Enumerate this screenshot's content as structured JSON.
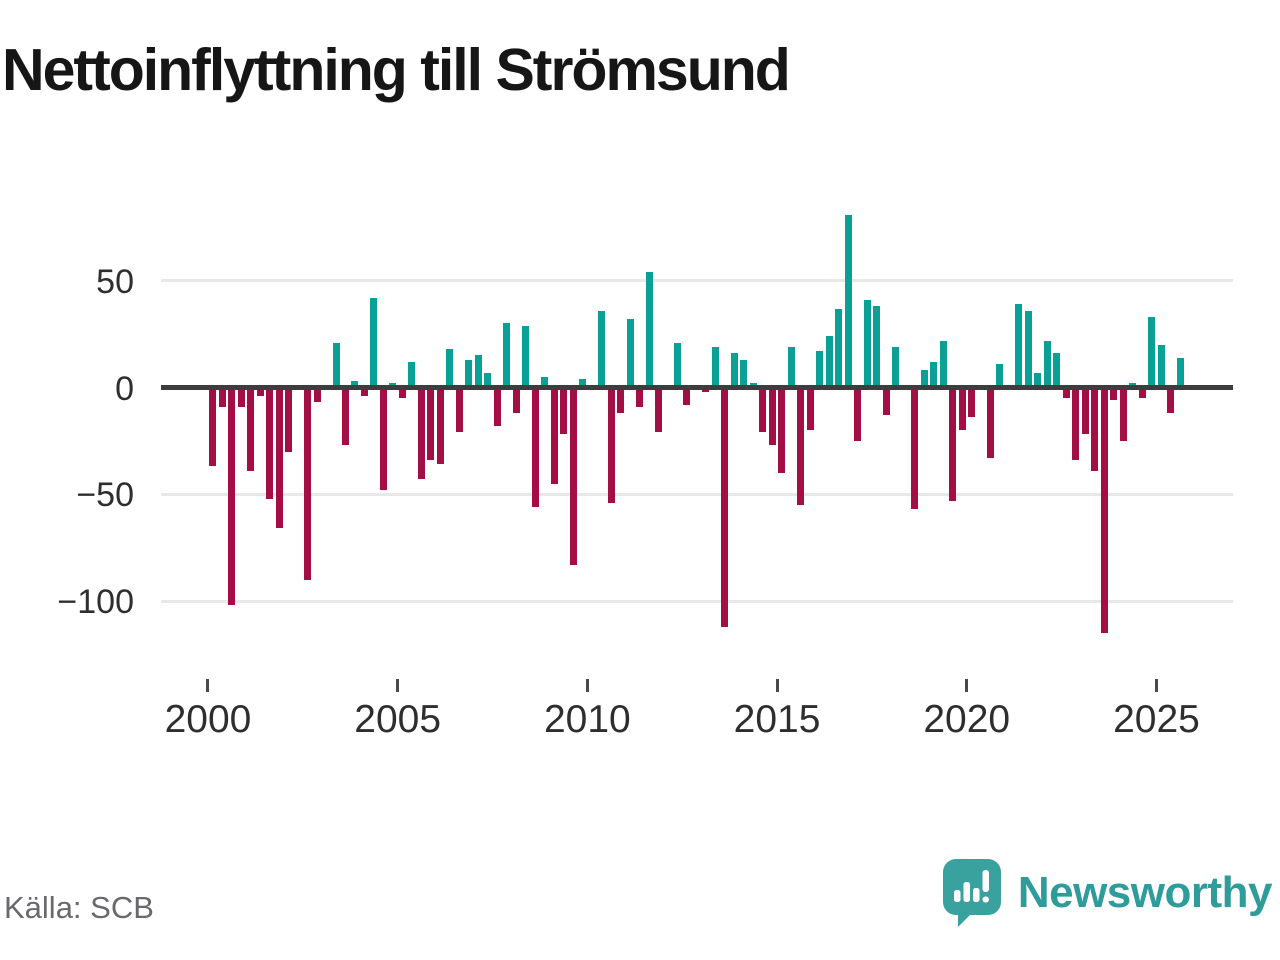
{
  "title": "Nettoinflyttning till Strömsund",
  "source": "Källa: SCB",
  "brand": {
    "name": "Newsworthy"
  },
  "colors": {
    "positive": "#09a096",
    "negative": "#a30f44",
    "grid": "#e8e8e8",
    "zero_line": "#3d3d3d",
    "axis_text": "#2e2e2e",
    "source_text": "#68686d",
    "brand_teal": "#2d9c9b",
    "logo_bubble": "#3aa29e",
    "title_text": "#161616"
  },
  "chart_data": {
    "type": "bar",
    "title": "Nettoinflyttning till Strömsund",
    "frequency": "quarterly",
    "start_year": 2000,
    "start_quarter": 1,
    "end_year": 2025,
    "end_quarter": 3,
    "x_ticks": [
      2000,
      2005,
      2010,
      2015,
      2020,
      2025
    ],
    "y_ticks": [
      50,
      0,
      -50,
      -100
    ],
    "ylim": [
      -120,
      95
    ],
    "grid": true,
    "legend": false,
    "xlabel": "",
    "ylabel": "",
    "values": [
      -37,
      -9,
      -102,
      -9,
      -39,
      -4,
      -52,
      -66,
      -30,
      0,
      -90,
      -7,
      0,
      21,
      -27,
      3,
      -4,
      42,
      -48,
      2,
      -5,
      12,
      -43,
      -34,
      -36,
      18,
      -21,
      13,
      15,
      7,
      -18,
      30,
      -12,
      29,
      -56,
      5,
      -45,
      -22,
      -83,
      4,
      0,
      36,
      -54,
      -12,
      32,
      -9,
      54,
      -21,
      0,
      21,
      -8,
      0,
      -2,
      19,
      -112,
      16,
      13,
      2,
      -21,
      -27,
      -40,
      19,
      -55,
      -20,
      17,
      24,
      37,
      81,
      -25,
      41,
      38,
      -13,
      19,
      0,
      -57,
      8,
      12,
      22,
      -53,
      -20,
      -14,
      0,
      -33,
      11,
      0,
      39,
      36,
      7,
      22,
      16,
      -5,
      -34,
      -22,
      -39,
      -115,
      -6,
      -25,
      2,
      -5,
      33,
      20,
      -12,
      14
    ]
  }
}
